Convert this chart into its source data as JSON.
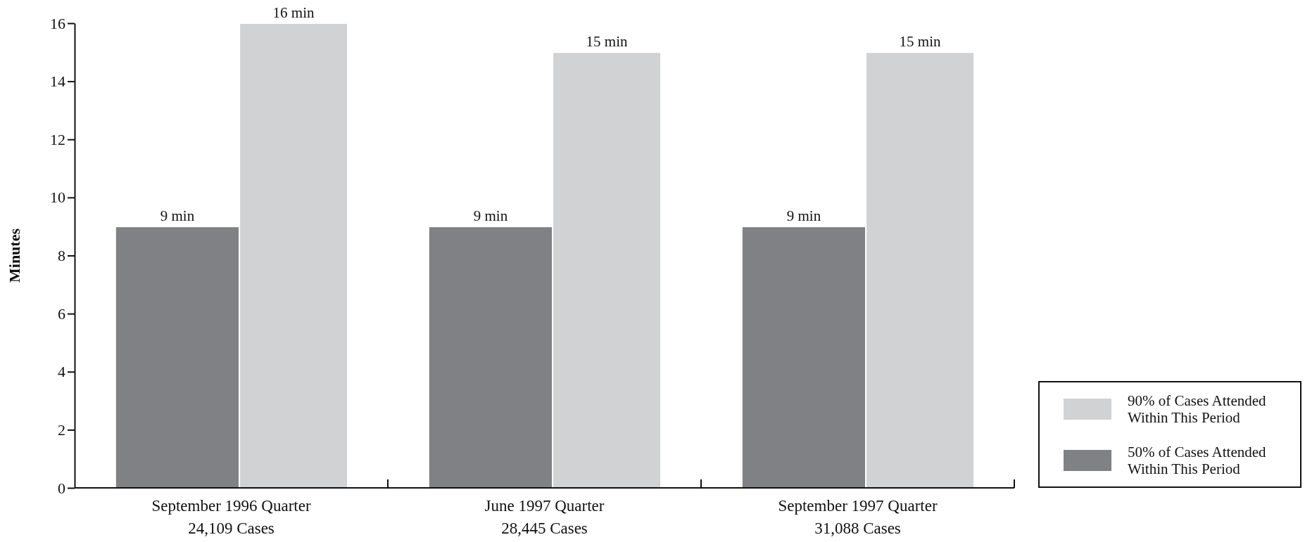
{
  "chart_data": {
    "type": "bar",
    "ylabel": "Minutes",
    "categories": [
      "September 1996 Quarter\n24,109 Cases",
      "June 1997 Quarter\n28,445 Cases",
      "September 1997 Quarter\n31,088 Cases"
    ],
    "series": [
      {
        "name": "50% of Cases Attended Within This Period",
        "color": "#808184",
        "values": [
          9,
          9,
          9
        ],
        "value_labels": [
          "9 min",
          "9 min",
          "9 min"
        ]
      },
      {
        "name": "90% of Cases Attended Within This Period",
        "color": "#d1d2d4",
        "values": [
          16,
          15,
          15
        ],
        "value_labels": [
          "16 min",
          "15 min",
          "15 min"
        ]
      }
    ],
    "ylim": [
      0,
      16
    ],
    "yticks": [
      0,
      2,
      4,
      6,
      8,
      10,
      12,
      14,
      16
    ],
    "grid": false,
    "legend": "bottom right"
  }
}
